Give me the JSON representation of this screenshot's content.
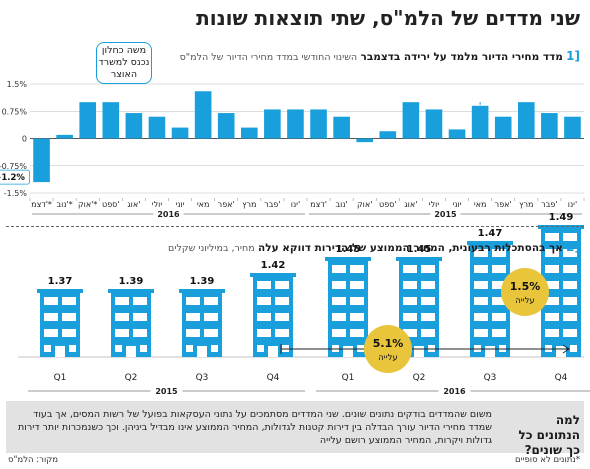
{
  "title": "שני מדדים של הלמ\"ס, שתי תוצאות שונות",
  "section1": {
    "num": "[1",
    "title_bold": "מדד מחירי הדיור מלמד על ירידה בדצמבר",
    "subtitle": "השינוי החודשי במדד מחירי הדיור של הלמ\"ס"
  },
  "callout": "משה כחלון נכנס למשרד האוצר",
  "section2": {
    "num": "[2",
    "title_bold": "אך בהסתכלות רבעונית, המחיר הממוצע של הדירות דווקא עלה",
    "subtitle": "מחיר, במיליוני שקלים"
  },
  "bottom": {
    "question": "למה הנתונים כל כך שונים?",
    "text": "משום שהמדדים בודקים נתונים שונים. שני המדדים מסתמכים על נתוני העסקאות בפועל של רשות המסים, אך בעוד שמדד מחירי הדיור עורך הבדלה בין דירות קטנות לגדולות, המחיר הממוצע אינו מבדיל ביניהן. וכך כשנמכרות יותר דירות גדולות ויקרות, המחיר הממוצע רושם עלייה",
    "source": "מקור: הלמ\"ס",
    "note": "*נתונים לא סופיים"
  },
  "colors": {
    "accent": "#19a0dc",
    "badge": "#e8c53a",
    "box": "#e2e2e2"
  },
  "chart_data": [
    {
      "type": "bar",
      "categories": [
        "ינו'",
        "פבר'",
        "מרץ",
        "אפר'",
        "מאי",
        "יוני",
        "יולי",
        "אוג'",
        "ספט'",
        "אוק'",
        "נוב'",
        "דצמ'",
        "ינו'",
        "פבר'",
        "מרץ",
        "אפר'",
        "מאי",
        "יוני",
        "יולי",
        "אוג'",
        "ספט'",
        "אוק'*",
        "נוב'*",
        "דצמ'*"
      ],
      "years": [
        {
          "label": "2015",
          "from": 0,
          "to": 11
        },
        {
          "label": "2016",
          "from": 12,
          "to": 23
        }
      ],
      "values": [
        0.6,
        0.7,
        1.0,
        0.6,
        0.9,
        0.25,
        0.8,
        1.0,
        0.2,
        -0.1,
        0.6,
        0.8,
        0.8,
        0.8,
        0.3,
        0.7,
        1.3,
        0.3,
        0.6,
        0.7,
        1.0,
        1.0,
        0.1,
        -1.2
      ],
      "value_labels": {
        "23": "−1.2%"
      },
      "yticks": [
        1.5,
        0.75,
        0,
        -0.75,
        -1.5
      ],
      "ytick_labels": [
        "1.5%",
        "0.75%",
        "0",
        "-0.75%",
        "-1.5%"
      ],
      "ylim": [
        -1.5,
        1.5
      ],
      "grid": true,
      "highlight_index": 23,
      "callout_index": 4
    },
    {
      "type": "bar",
      "categories": [
        "Q1",
        "Q2",
        "Q3",
        "Q4",
        "Q1",
        "Q2",
        "Q3",
        "Q4"
      ],
      "years": [
        {
          "label": "2015",
          "from": 0,
          "to": 3
        },
        {
          "label": "2016",
          "from": 4,
          "to": 7
        }
      ],
      "values": [
        1.37,
        1.39,
        1.39,
        1.42,
        1.45,
        1.45,
        1.47,
        1.49
      ],
      "value_labels": [
        "1.37",
        "1.39",
        "1.39",
        "1.42",
        "1.45",
        "1.45",
        "1.47",
        "1.49"
      ],
      "floors": [
        4,
        4,
        4,
        5,
        6,
        6,
        7,
        8
      ],
      "annotations": [
        {
          "value": "5.1%",
          "label": "עלייה",
          "from": 3,
          "to": 7
        },
        {
          "value": "1.5%",
          "label": "עלייה",
          "from": 6,
          "to": 7
        }
      ]
    }
  ]
}
